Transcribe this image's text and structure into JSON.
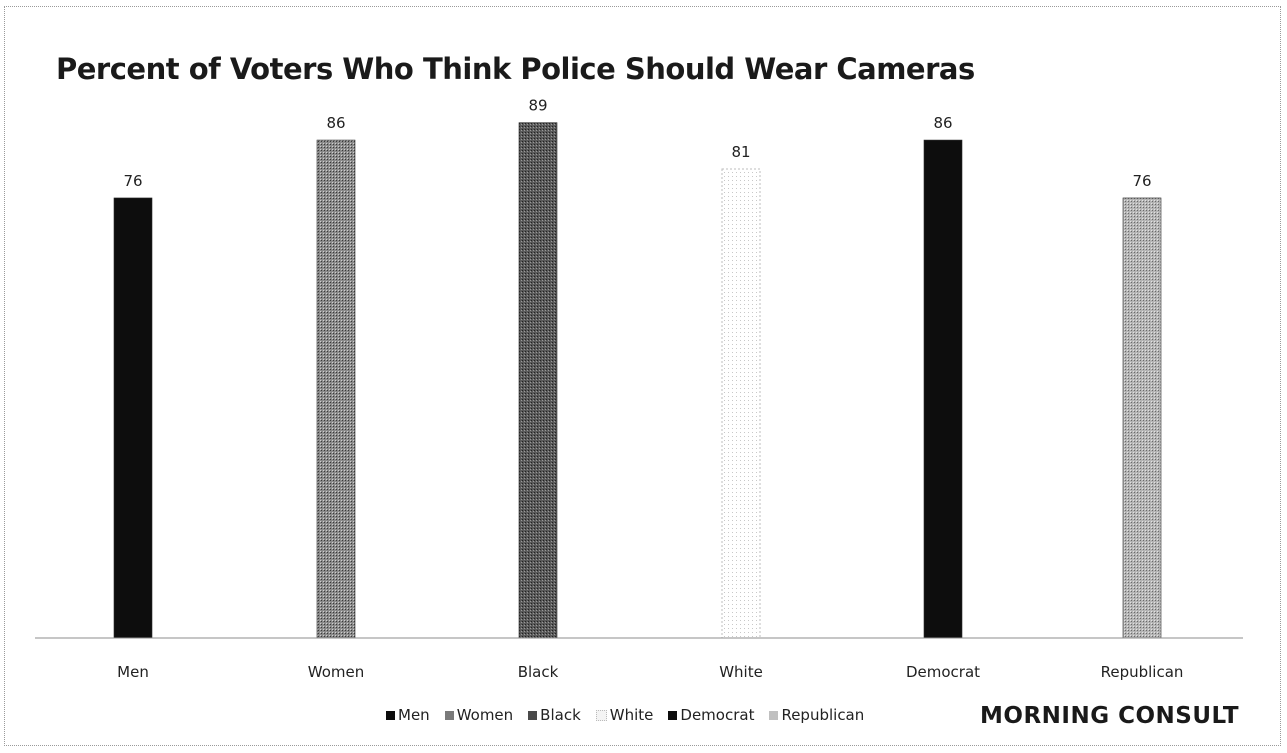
{
  "chart_data": {
    "type": "bar",
    "title": "Percent of Voters Who Think Police Should Wear Cameras",
    "categories": [
      "Men",
      "Women",
      "Black",
      "White",
      "Democrat",
      "Republican"
    ],
    "values": [
      76,
      86,
      89,
      81,
      86,
      76
    ],
    "data_labels": [
      "76",
      "86",
      "89",
      "81",
      "86",
      "76"
    ],
    "colors": [
      "#0d0d0d",
      "#6f6f6f",
      "#474747",
      "#f4f4f4",
      "#0d0d0d",
      "#a9a9a9"
    ],
    "legend": {
      "position": "bottom",
      "entries": [
        "Men",
        "Women",
        "Black",
        "White",
        "Democrat",
        "Republican"
      ]
    },
    "grid": false,
    "xlabel": "",
    "ylabel": ""
  },
  "brand": "MORNING CONSULT"
}
